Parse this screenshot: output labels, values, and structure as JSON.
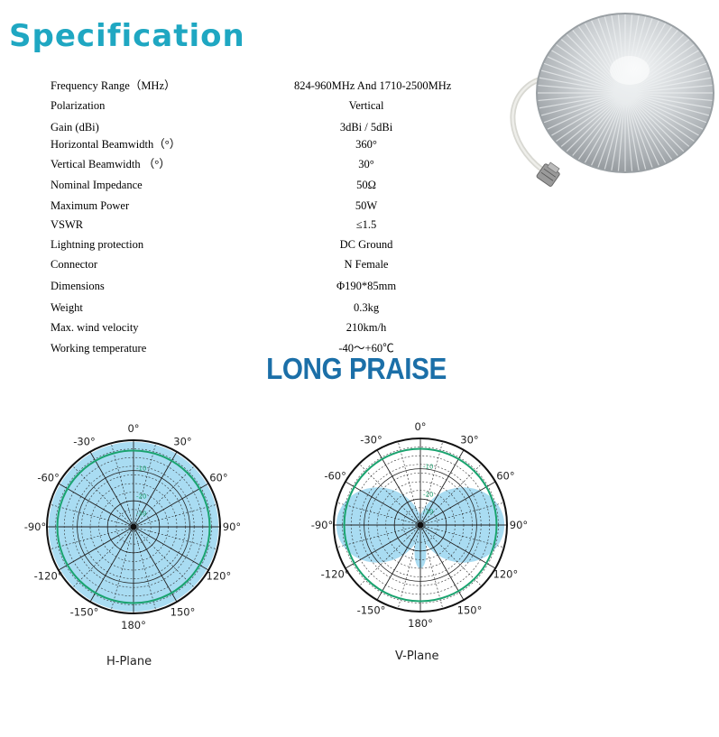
{
  "title": "Specification",
  "brand": "LONG PRAISE",
  "specs": [
    {
      "label": "Frequency Range（MHz）",
      "value": "824-960MHz And 1710-2500MHz"
    },
    {
      "label": "Polarization",
      "value": "Vertical"
    },
    {
      "label": "Gain (dBi)",
      "value": "3dBi / 5dBi"
    },
    {
      "label": "Horizontal Beamwidth（°）",
      "value": "360°"
    },
    {
      "label": "Vertical Beamwidth （°）",
      "value": "30°"
    },
    {
      "label": "Nominal Impedance",
      "value": "50Ω"
    },
    {
      "label": "Maximum Power",
      "value": "50W"
    },
    {
      "label": "VSWR",
      "value": "≤1.5"
    },
    {
      "label": "Lightning protection",
      "value": "DC Ground"
    },
    {
      "label": "Connector",
      "value": "N Female"
    },
    {
      "label": "Dimensions",
      "value": "Φ190*85mm"
    },
    {
      "label": "Weight",
      "value": "0.3kg"
    },
    {
      "label": "Max. wind velocity",
      "value": "210km/h"
    },
    {
      "label": "Working temperature",
      "value": "-40～+60℃"
    }
  ],
  "chart_data": [
    {
      "type": "polar",
      "title": "H-Plane",
      "angle_labels": [
        "0°",
        "30°",
        "60°",
        "90°",
        "120°",
        "150°",
        "180°",
        "-150°",
        "-120°",
        "-90°",
        "-60°",
        "-30°"
      ],
      "ring_labels": [
        "-10",
        "-20",
        "-30"
      ],
      "pattern": "omnidirectional",
      "colors": {
        "fill": "#a9dcf2",
        "ring": "#1aa36f"
      }
    },
    {
      "type": "polar",
      "title": "V-Plane",
      "angle_labels": [
        "0°",
        "30°",
        "60°",
        "90°",
        "120°",
        "150°",
        "180°",
        "-150°",
        "-120°",
        "-90°",
        "-60°",
        "-30°"
      ],
      "ring_labels": [
        "-10",
        "-20",
        "-30"
      ],
      "pattern": "figure-eight",
      "colors": {
        "fill": "#a9dcf2",
        "ring": "#1aa36f"
      }
    }
  ]
}
